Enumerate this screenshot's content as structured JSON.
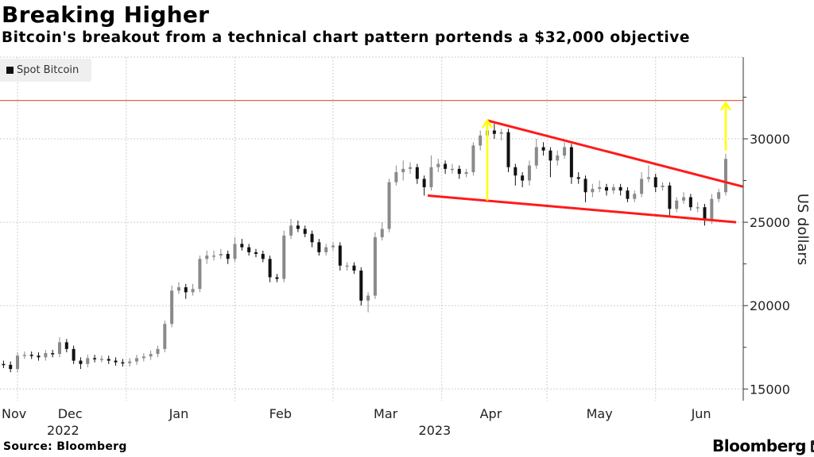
{
  "title": "Breaking Higher",
  "subtitle": "Bitcoin's breakout from a technical chart pattern portends a $32,000 objective",
  "legend": {
    "label": "Spot Bitcoin"
  },
  "source": "Source: Bloomberg",
  "brand": "Bloomberg",
  "colors": {
    "down": "#111111",
    "up": "#8a8a8a",
    "trend": "#ff1a1a",
    "target": "#e0644f",
    "arrow": "#ffff00",
    "grid": "#cfcfcf"
  },
  "chart_data": {
    "type": "candlestick",
    "title": "Breaking Higher",
    "series_name": "Spot Bitcoin",
    "ylabel": "US dollars",
    "xlabel": "",
    "ylim": [
      14300,
      34900
    ],
    "xlim": [
      "2022-11-26",
      "2023-06-26"
    ],
    "y_ticks": [
      15000,
      20000,
      25000,
      30000
    ],
    "month_gridlines": [
      "2022-12-01",
      "2023-01-01",
      "2023-02-01",
      "2023-03-01",
      "2023-04-01",
      "2023-05-01",
      "2023-06-01"
    ],
    "x_labels": [
      {
        "label": "Nov",
        "date": "2022-11-30"
      },
      {
        "label": "Dec",
        "date": "2022-12-16"
      },
      {
        "label": "Jan",
        "date": "2023-01-16"
      },
      {
        "label": "Feb",
        "date": "2023-02-14"
      },
      {
        "label": "Mar",
        "date": "2023-03-16"
      },
      {
        "label": "Apr",
        "date": "2023-04-15"
      },
      {
        "label": "May",
        "date": "2023-05-16"
      },
      {
        "label": "Jun",
        "date": "2023-06-14"
      }
    ],
    "year_labels": [
      {
        "label": "2022",
        "date": "2022-12-14"
      },
      {
        "label": "2023",
        "date": "2023-03-30"
      }
    ],
    "grid": true,
    "legend_position": "top-left",
    "start_date": "2022-11-25",
    "step_days": 2,
    "open": [
      16400,
      16500,
      16450,
      16200,
      17000,
      17050,
      17000,
      16900,
      17150,
      17100,
      17800,
      17400,
      16700,
      16500,
      16850,
      16800,
      16800,
      16700,
      16600,
      16550,
      16650,
      16850,
      16950,
      17100,
      17400,
      18900,
      20900,
      21100,
      20800,
      21000,
      22800,
      23000,
      23000,
      23100,
      22800,
      23700,
      23500,
      23200,
      23100,
      22800,
      21700,
      21600,
      24200,
      24800,
      24600,
      24300,
      23800,
      23200,
      23500,
      23600,
      22400,
      22400,
      22100,
      20300,
      20600,
      24100,
      24600,
      27400,
      28000,
      28200,
      28300,
      27600,
      27100,
      28300,
      28500,
      28200,
      28200,
      27900,
      28000,
      29600,
      30200,
      30500,
      30300,
      30400,
      28300,
      27800,
      27500,
      28400,
      29500,
      29300,
      28700,
      29000,
      29500,
      27700,
      27600,
      26800,
      27000,
      27100,
      26900,
      27100,
      26900,
      26400,
      26700,
      27600,
      27700,
      27100,
      27200,
      25800,
      26300,
      26500,
      25900,
      25900,
      25200,
      26400,
      26800
    ],
    "high": [
      16700,
      16700,
      16650,
      17200,
      17250,
      17250,
      17200,
      17350,
      17350,
      18100,
      18000,
      17600,
      16900,
      17050,
      17050,
      17000,
      17000,
      16900,
      16800,
      16850,
      17050,
      17150,
      17300,
      17600,
      19100,
      21200,
      21400,
      21300,
      21300,
      23000,
      23300,
      23300,
      23400,
      23300,
      24100,
      24000,
      23700,
      23400,
      23300,
      23000,
      21900,
      24500,
      25200,
      25100,
      24800,
      24500,
      24000,
      23700,
      23800,
      23800,
      22600,
      22600,
      22300,
      20800,
      24400,
      25000,
      27600,
      28400,
      28700,
      28600,
      28500,
      27800,
      29000,
      28800,
      28700,
      28500,
      28400,
      28200,
      29800,
      30500,
      31000,
      30900,
      30600,
      30600,
      28500,
      28000,
      28700,
      30000,
      29800,
      29500,
      29300,
      29800,
      29700,
      28000,
      27800,
      27300,
      27500,
      27300,
      27300,
      27300,
      27100,
      26900,
      28000,
      28400,
      27900,
      27400,
      27400,
      26500,
      26800,
      26700,
      26200,
      26100,
      26700,
      27000,
      29100
    ],
    "low": [
      16200,
      16250,
      16000,
      16000,
      16800,
      16800,
      16700,
      16700,
      16900,
      16900,
      17200,
      16500,
      16200,
      16300,
      16600,
      16600,
      16500,
      16400,
      16350,
      16350,
      16450,
      16650,
      16750,
      16900,
      17200,
      18700,
      20700,
      20400,
      20600,
      20800,
      22500,
      22700,
      22800,
      22500,
      22600,
      23300,
      23000,
      22900,
      22600,
      21400,
      21400,
      21400,
      24000,
      24400,
      24100,
      23500,
      23000,
      23000,
      23300,
      22100,
      22100,
      21900,
      20000,
      19600,
      20400,
      23900,
      24400,
      27200,
      27500,
      27900,
      27300,
      26600,
      26900,
      28000,
      27900,
      27900,
      27600,
      27700,
      27800,
      29300,
      29900,
      30000,
      29900,
      28000,
      27200,
      27100,
      27200,
      28200,
      29000,
      27700,
      28400,
      28800,
      27300,
      27300,
      26200,
      26500,
      26800,
      26600,
      26700,
      26600,
      26200,
      26200,
      26500,
      27400,
      26800,
      26900,
      25400,
      25600,
      26100,
      25700,
      25600,
      24800,
      24900,
      26200,
      26600
    ],
    "close": [
      16500,
      16450,
      16200,
      17000,
      17050,
      17000,
      16900,
      17150,
      17100,
      17800,
      17400,
      16700,
      16500,
      16850,
      16800,
      16800,
      16700,
      16600,
      16550,
      16650,
      16850,
      16950,
      17100,
      17400,
      18900,
      20900,
      21100,
      20800,
      21000,
      22800,
      23000,
      23000,
      23100,
      22800,
      23700,
      23500,
      23200,
      23100,
      22800,
      21700,
      21600,
      24200,
      24800,
      24600,
      24300,
      23800,
      23200,
      23500,
      23600,
      22400,
      22400,
      22100,
      20300,
      20600,
      24100,
      24600,
      27400,
      28000,
      28200,
      28300,
      27600,
      27100,
      28300,
      28500,
      28200,
      28200,
      27900,
      28000,
      29600,
      30200,
      30500,
      30300,
      30400,
      28300,
      27800,
      27500,
      28400,
      29500,
      29300,
      28700,
      29000,
      29500,
      27700,
      27600,
      26800,
      27000,
      27100,
      26900,
      27100,
      26900,
      26400,
      26700,
      27600,
      27700,
      27100,
      27200,
      25800,
      26300,
      26500,
      25900,
      25900,
      25200,
      26400,
      26800,
      28800
    ],
    "annotations": {
      "target_line": {
        "value": 32300
      },
      "upper_trendline": [
        {
          "date": "2023-04-14",
          "value": 31100
        },
        {
          "date": "2023-06-26",
          "value": 27130
        }
      ],
      "lower_trendline": [
        {
          "date": "2023-03-28",
          "value": 26600
        },
        {
          "date": "2023-06-24",
          "value": 25000
        }
      ],
      "pattern_height_arrow": {
        "date": "2023-04-14",
        "from": 26300,
        "to": 31100
      },
      "projection_arrow": {
        "date": "2023-06-21",
        "from": 29300,
        "to": 32150
      }
    }
  }
}
